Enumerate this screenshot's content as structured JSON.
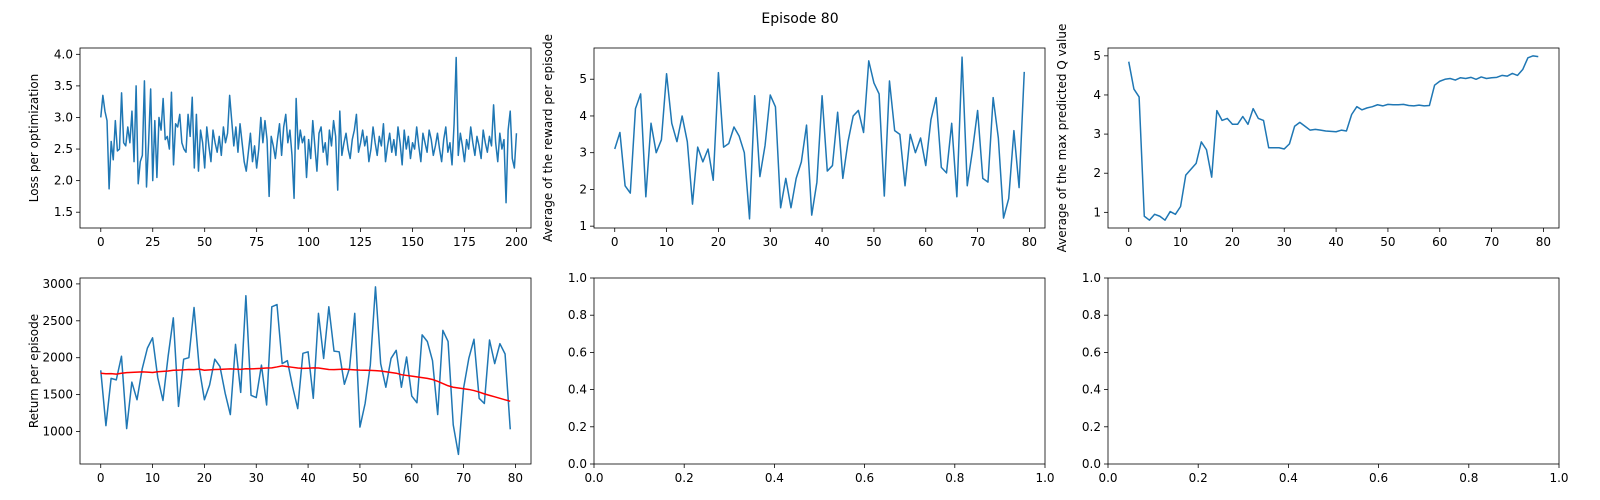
{
  "figure": {
    "suptitle": "Episode 80"
  },
  "colors": {
    "series": "#1f77b4",
    "average": "#ff0000",
    "axes": "#000000"
  },
  "chart_data": [
    {
      "id": "loss",
      "type": "line",
      "title": "",
      "xlabel": "",
      "ylabel": "Loss per optimization",
      "xlim": [
        -10,
        207
      ],
      "ylim": [
        1.25,
        4.1
      ],
      "xticks": [
        0,
        25,
        50,
        75,
        100,
        125,
        150,
        175,
        200
      ],
      "yticks": [
        1.5,
        2.0,
        2.5,
        3.0,
        3.5,
        4.0
      ],
      "ytick_labels": [
        "1.5",
        "2.0",
        "2.5",
        "3.0",
        "3.5",
        "4.0"
      ],
      "grid": false,
      "series": [
        {
          "color": "#1f77b4",
          "values": [
            3.0,
            3.35,
            3.1,
            2.95,
            1.87,
            2.62,
            2.33,
            2.95,
            2.47,
            2.5,
            3.39,
            2.6,
            2.55,
            2.85,
            2.6,
            3.1,
            2.3,
            3.5,
            1.95,
            2.3,
            2.4,
            3.58,
            1.9,
            2.6,
            3.45,
            2.0,
            2.95,
            2.05,
            3.0,
            2.8,
            3.3,
            2.65,
            2.7,
            2.5,
            3.4,
            2.25,
            2.9,
            2.85,
            3.05,
            2.6,
            2.5,
            2.45,
            3.05,
            2.7,
            3.32,
            2.2,
            3.05,
            2.15,
            2.8,
            2.6,
            2.2,
            2.85,
            2.55,
            2.3,
            2.8,
            2.6,
            2.45,
            2.7,
            2.4,
            2.85,
            2.6,
            2.75,
            3.35,
            2.95,
            2.55,
            2.85,
            2.45,
            2.9,
            2.6,
            2.3,
            2.15,
            2.45,
            2.75,
            2.3,
            2.55,
            2.2,
            2.5,
            3.0,
            2.6,
            2.95,
            2.65,
            1.75,
            2.7,
            2.55,
            2.35,
            2.65,
            2.9,
            2.4,
            2.85,
            3.05,
            2.6,
            2.8,
            2.4,
            1.72,
            3.3,
            2.5,
            2.8,
            2.6,
            2.7,
            2.05,
            2.65,
            2.35,
            2.95,
            2.55,
            2.15,
            2.75,
            2.85,
            2.45,
            2.6,
            2.25,
            2.8,
            2.55,
            2.95,
            2.7,
            1.85,
            3.1,
            2.4,
            2.6,
            2.75,
            2.5,
            2.35,
            2.65,
            2.8,
            3.05,
            2.45,
            2.6,
            2.8,
            2.55,
            2.7,
            2.3,
            2.5,
            2.85,
            2.6,
            2.4,
            2.7,
            2.55,
            2.9,
            2.3,
            2.55,
            2.75,
            2.45,
            2.65,
            2.4,
            2.85,
            2.6,
            2.25,
            2.8,
            2.5,
            2.7,
            2.35,
            2.6,
            2.5,
            2.85,
            2.55,
            2.3,
            2.75,
            2.6,
            2.45,
            2.8,
            2.65,
            2.4,
            2.55,
            2.75,
            2.5,
            2.3,
            2.65,
            2.85,
            2.45,
            2.6,
            2.25,
            2.9,
            3.95,
            2.4,
            2.75,
            2.55,
            2.3,
            2.65,
            2.5,
            2.85,
            2.6,
            2.4,
            2.7,
            2.55,
            2.35,
            2.8,
            2.6,
            2.45,
            2.7,
            2.55,
            3.2,
            2.6,
            2.3,
            2.75,
            2.5,
            2.65,
            1.65,
            2.8,
            3.1,
            2.35,
            2.2,
            2.75
          ]
        }
      ]
    },
    {
      "id": "reward",
      "type": "line",
      "title": "",
      "xlabel": "",
      "ylabel": "Average of the reward per episode",
      "xlim": [
        -4,
        83
      ],
      "ylim": [
        0.95,
        5.85
      ],
      "xticks": [
        0,
        10,
        20,
        30,
        40,
        50,
        60,
        70,
        80
      ],
      "yticks": [
        1,
        2,
        3,
        4,
        5
      ],
      "ytick_labels": [
        "1",
        "2",
        "3",
        "4",
        "5"
      ],
      "grid": false,
      "series": [
        {
          "color": "#1f77b4",
          "values": [
            3.1,
            3.55,
            2.1,
            1.9,
            4.2,
            4.6,
            1.8,
            3.8,
            3.0,
            3.35,
            5.15,
            3.8,
            3.3,
            4.0,
            3.3,
            1.6,
            3.15,
            2.75,
            3.1,
            2.25,
            5.18,
            3.15,
            3.25,
            3.7,
            3.45,
            3.0,
            1.2,
            4.55,
            2.35,
            3.2,
            4.57,
            4.25,
            1.5,
            2.3,
            1.5,
            2.3,
            2.75,
            3.75,
            1.3,
            2.2,
            4.55,
            2.5,
            2.65,
            4.1,
            2.3,
            3.3,
            4.0,
            4.15,
            3.55,
            5.5,
            4.9,
            4.6,
            1.82,
            4.95,
            3.6,
            3.5,
            2.1,
            3.5,
            3.0,
            3.4,
            2.65,
            3.9,
            4.5,
            2.6,
            2.45,
            3.8,
            1.8,
            5.6,
            2.1,
            3.05,
            4.15,
            2.3,
            2.2,
            4.5,
            3.4,
            1.22,
            1.75,
            3.6,
            2.05,
            5.2
          ]
        }
      ]
    },
    {
      "id": "qvalue",
      "type": "line",
      "title": "",
      "xlabel": "",
      "ylabel": "Average of the max predicted Q value",
      "xlim": [
        -4,
        83
      ],
      "ylim": [
        0.6,
        5.2
      ],
      "xticks": [
        0,
        10,
        20,
        30,
        40,
        50,
        60,
        70,
        80
      ],
      "yticks": [
        1,
        2,
        3,
        4,
        5
      ],
      "ytick_labels": [
        "1",
        "2",
        "3",
        "4",
        "5"
      ],
      "grid": false,
      "series": [
        {
          "color": "#1f77b4",
          "values": [
            4.85,
            4.15,
            3.95,
            0.9,
            0.8,
            0.95,
            0.9,
            0.8,
            1.02,
            0.95,
            1.15,
            1.95,
            2.1,
            2.25,
            2.8,
            2.6,
            1.9,
            3.6,
            3.35,
            3.4,
            3.25,
            3.25,
            3.45,
            3.25,
            3.65,
            3.4,
            3.35,
            2.65,
            2.65,
            2.65,
            2.62,
            2.75,
            3.2,
            3.3,
            3.2,
            3.1,
            3.12,
            3.1,
            3.08,
            3.07,
            3.06,
            3.1,
            3.08,
            3.5,
            3.7,
            3.62,
            3.67,
            3.7,
            3.75,
            3.72,
            3.76,
            3.75,
            3.75,
            3.76,
            3.73,
            3.72,
            3.74,
            3.72,
            3.73,
            4.25,
            4.35,
            4.4,
            4.42,
            4.38,
            4.44,
            4.42,
            4.45,
            4.4,
            4.46,
            4.42,
            4.44,
            4.45,
            4.5,
            4.48,
            4.55,
            4.5,
            4.65,
            4.95,
            5.0,
            4.98
          ]
        }
      ]
    },
    {
      "id": "return",
      "type": "line",
      "title": "",
      "xlabel": "",
      "ylabel": "Return per episode",
      "xlim": [
        -4,
        83
      ],
      "ylim": [
        560,
        3080
      ],
      "xticks": [
        0,
        10,
        20,
        30,
        40,
        50,
        60,
        70,
        80
      ],
      "yticks": [
        1000,
        1500,
        2000,
        2500,
        3000
      ],
      "ytick_labels": [
        "1000",
        "1500",
        "2000",
        "2500",
        "3000"
      ],
      "grid": false,
      "series": [
        {
          "color": "#1f77b4",
          "values": [
            1830,
            1080,
            1720,
            1700,
            2020,
            1040,
            1670,
            1430,
            1850,
            2130,
            2270,
            1730,
            1420,
            2020,
            2540,
            1340,
            1980,
            2000,
            2680,
            1860,
            1430,
            1630,
            1980,
            1880,
            1520,
            1230,
            2180,
            1530,
            2840,
            1490,
            1460,
            1900,
            1360,
            2690,
            2720,
            1920,
            1960,
            1610,
            1310,
            2060,
            2080,
            1450,
            2600,
            1990,
            2690,
            2090,
            2080,
            1640,
            1860,
            2600,
            1060,
            1380,
            1900,
            2960,
            1920,
            1600,
            1990,
            2100,
            1600,
            2010,
            1480,
            1390,
            2310,
            2220,
            1960,
            1230,
            2370,
            2220,
            1090,
            690,
            1590,
            1990,
            2250,
            1450,
            1380,
            2240,
            1920,
            2190,
            2050,
            1030
          ]
        },
        {
          "color": "#ff0000",
          "values": [
            1790,
            1782,
            1785,
            1778,
            1790,
            1798,
            1802,
            1805,
            1808,
            1805,
            1800,
            1810,
            1815,
            1820,
            1830,
            1832,
            1835,
            1840,
            1838,
            1845,
            1830,
            1835,
            1840,
            1842,
            1845,
            1848,
            1845,
            1842,
            1850,
            1848,
            1852,
            1855,
            1860,
            1862,
            1875,
            1890,
            1880,
            1870,
            1860,
            1855,
            1858,
            1862,
            1860,
            1850,
            1840,
            1838,
            1842,
            1845,
            1840,
            1836,
            1832,
            1830,
            1828,
            1825,
            1820,
            1810,
            1800,
            1790,
            1770,
            1760,
            1750,
            1740,
            1730,
            1720,
            1705,
            1680,
            1650,
            1620,
            1600,
            1590,
            1580,
            1570,
            1555,
            1535,
            1510,
            1490,
            1470,
            1450,
            1430,
            1410
          ]
        }
      ]
    },
    {
      "id": "empty1",
      "type": "line",
      "title": "",
      "xlabel": "",
      "ylabel": "",
      "xlim": [
        0,
        1
      ],
      "ylim": [
        0,
        1
      ],
      "xticks": [
        0,
        0.2,
        0.4,
        0.6,
        0.8,
        1.0
      ],
      "xtick_labels": [
        "0.0",
        "0.2",
        "0.4",
        "0.6",
        "0.8",
        "1.0"
      ],
      "yticks": [
        0,
        0.2,
        0.4,
        0.6,
        0.8,
        1.0
      ],
      "ytick_labels": [
        "0.0",
        "0.2",
        "0.4",
        "0.6",
        "0.8",
        "1.0"
      ],
      "grid": false,
      "series": []
    },
    {
      "id": "empty2",
      "type": "line",
      "title": "",
      "xlabel": "",
      "ylabel": "",
      "xlim": [
        0,
        1
      ],
      "ylim": [
        0,
        1
      ],
      "xticks": [
        0,
        0.2,
        0.4,
        0.6,
        0.8,
        1.0
      ],
      "xtick_labels": [
        "0.0",
        "0.2",
        "0.4",
        "0.6",
        "0.8",
        "1.0"
      ],
      "yticks": [
        0,
        0.2,
        0.4,
        0.6,
        0.8,
        1.0
      ],
      "ytick_labels": [
        "0.0",
        "0.2",
        "0.4",
        "0.6",
        "0.8",
        "1.0"
      ],
      "grid": false,
      "series": []
    }
  ]
}
